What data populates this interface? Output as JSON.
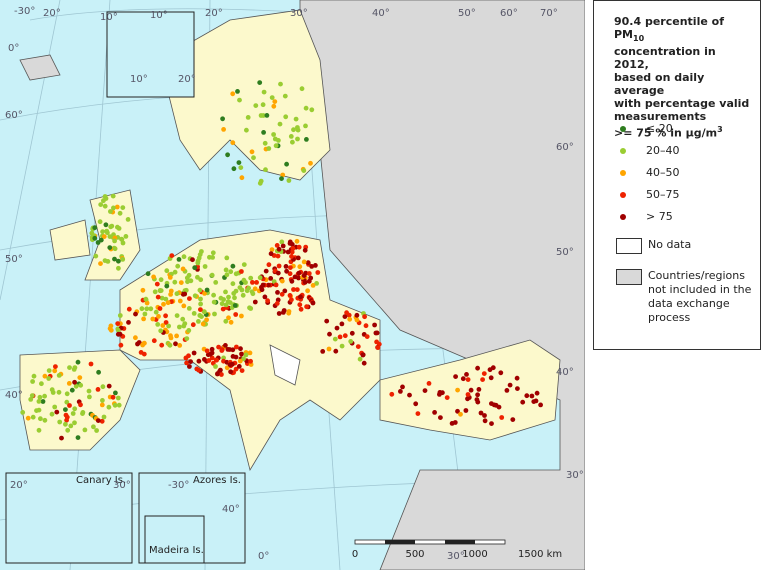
{
  "legend": {
    "title": {
      "pre": "90.4 percentile of PM",
      "sub": "10",
      "lines": [
        "concentration in 2012,",
        "based on daily average",
        "with percentage valid",
        "measurements"
      ],
      "last": ">= 75 % in µg/m",
      "sup": "3"
    },
    "classes": [
      {
        "label": "≤ 20",
        "color": "#2e7d1f"
      },
      {
        "label": "20–40",
        "color": "#9acd32"
      },
      {
        "label": "40–50",
        "color": "#ffa500"
      },
      {
        "label": "50–75",
        "color": "#ee2200"
      },
      {
        "label": "> 75",
        "color": "#a00000"
      }
    ],
    "areas": [
      {
        "label": "No data",
        "color": "#ffffff"
      },
      {
        "label": "Countries/regions not included in the data exchange process",
        "color": "#d9d9d9"
      }
    ]
  },
  "insets": [
    "Canary Is.",
    "Azores Is.",
    "Madeira Is."
  ],
  "scale_bar": [
    "0",
    "500",
    "1000",
    "1500 km"
  ],
  "graticule_labels": [
    "-30°",
    "20°",
    "10°",
    "0°",
    "10°",
    "20°",
    "30°",
    "40°",
    "50°",
    "60°",
    "70°",
    "60°",
    "50°",
    "40°",
    "30°",
    "10°",
    "20°",
    "20°",
    "30°",
    "-30°",
    "40°",
    "30°",
    "0°",
    "60°",
    "50°",
    "40°"
  ]
}
